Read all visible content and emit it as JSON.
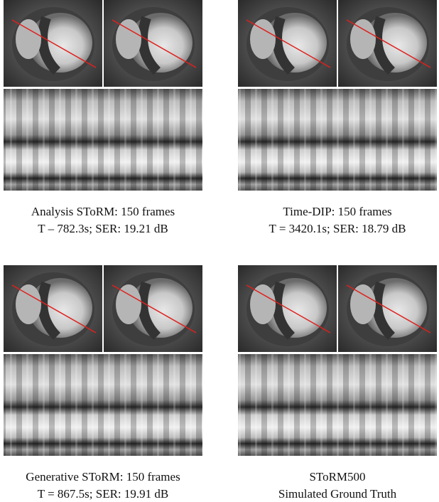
{
  "panels": [
    {
      "caption": [
        "Analysis SToRM: 150 frames",
        "T – 782.3s; SER: 19.21 dB"
      ]
    },
    {
      "caption": [
        "Time-DIP: 150 frames",
        "T = 3420.1s; SER: 18.79 dB"
      ]
    },
    {
      "caption": [
        "Generative SToRM: 150 frames",
        "T = 867.5s; SER: 19.91 dB"
      ]
    },
    {
      "caption": [
        "SToRM500",
        "Simulated Ground Truth"
      ]
    }
  ]
}
